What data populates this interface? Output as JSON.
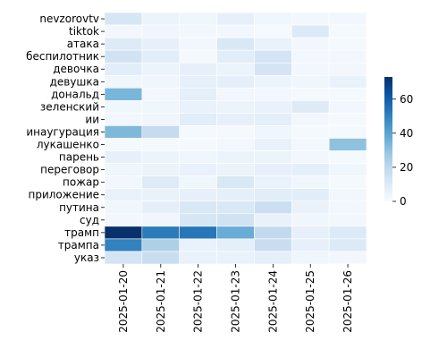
{
  "chart_data": {
    "type": "heatmap",
    "title": "",
    "xlabel": "",
    "ylabel": "",
    "rows": [
      "nevzorovtv",
      "tiktok",
      "атака",
      "беспилотник",
      "девочка",
      "девушка",
      "дональд",
      "зеленский",
      "ии",
      "инаугурация",
      "лукашенко",
      "парень",
      "переговор",
      "пожар",
      "приложение",
      "путина",
      "суд",
      "трамп",
      "трампа",
      "указ"
    ],
    "columns": [
      "2025-01-20",
      "2025-01-21",
      "2025-01-22",
      "2025-01-23",
      "2025-01-24",
      "2025-01-25",
      "2025-01-26"
    ],
    "values": [
      [
        12,
        4,
        3,
        6,
        3,
        2,
        2
      ],
      [
        2,
        3,
        2,
        2,
        1,
        10,
        1
      ],
      [
        9,
        6,
        2,
        11,
        5,
        2,
        1
      ],
      [
        14,
        8,
        1,
        8,
        13,
        2,
        2
      ],
      [
        8,
        4,
        6,
        4,
        13,
        2,
        2
      ],
      [
        3,
        3,
        6,
        7,
        4,
        3,
        5
      ],
      [
        34,
        2,
        7,
        2,
        2,
        1,
        1
      ],
      [
        3,
        3,
        5,
        4,
        5,
        9,
        2
      ],
      [
        2,
        3,
        8,
        6,
        7,
        2,
        1
      ],
      [
        33,
        18,
        1,
        1,
        3,
        1,
        1
      ],
      [
        1,
        1,
        1,
        2,
        5,
        2,
        30
      ],
      [
        6,
        4,
        3,
        4,
        4,
        2,
        1
      ],
      [
        3,
        4,
        5,
        4,
        6,
        7,
        3
      ],
      [
        2,
        9,
        3,
        11,
        5,
        3,
        1
      ],
      [
        5,
        5,
        6,
        7,
        8,
        8,
        2
      ],
      [
        3,
        7,
        11,
        11,
        16,
        5,
        2
      ],
      [
        2,
        3,
        12,
        14,
        5,
        3,
        2
      ],
      [
        73,
        52,
        53,
        37,
        19,
        6,
        10
      ],
      [
        50,
        24,
        5,
        7,
        17,
        6,
        10
      ],
      [
        13,
        17,
        5,
        5,
        7,
        3,
        2
      ]
    ],
    "colorbar": {
      "min": 0,
      "max": 73,
      "ticks": [
        0,
        20,
        40,
        60
      ]
    },
    "colormap": {
      "low": "#f7fbff",
      "high": "#08306b",
      "name": "Blues"
    },
    "grid": false,
    "legend": "colorbar-right"
  }
}
